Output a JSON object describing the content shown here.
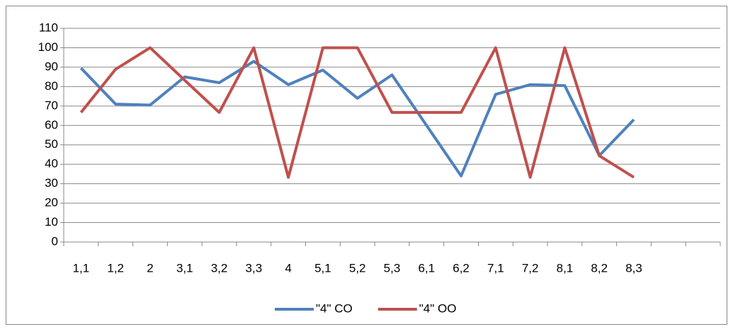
{
  "chart_data": {
    "type": "line",
    "categories": [
      "1,1",
      "1,2",
      "2",
      "3,1",
      "3,2",
      "3,3",
      "4",
      "5,1",
      "5,2",
      "5,3",
      "6,1",
      "6,2",
      "7,1",
      "7,2",
      "8,1",
      "8,2",
      "8,3",
      null,
      null
    ],
    "series": [
      {
        "name": "\"4\" CO",
        "color": "#4f81bd",
        "values": [
          89.5,
          71,
          70.5,
          85,
          82,
          93,
          81,
          88.5,
          74,
          86,
          60,
          34,
          76,
          81,
          80.5,
          44.5,
          63,
          null,
          null
        ]
      },
      {
        "name": "\"4\" OO",
        "color": "#c0504d",
        "values": [
          66.7,
          88.9,
          100,
          83.3,
          66.7,
          100,
          33.3,
          100,
          100,
          66.7,
          66.7,
          66.7,
          100,
          33.3,
          100,
          44.4,
          33.3,
          null,
          null
        ]
      }
    ],
    "ylim": [
      0,
      110
    ],
    "yticks": [
      0,
      10,
      20,
      30,
      40,
      50,
      60,
      70,
      80,
      90,
      100,
      110
    ],
    "grid": true,
    "legend": "bottom"
  }
}
